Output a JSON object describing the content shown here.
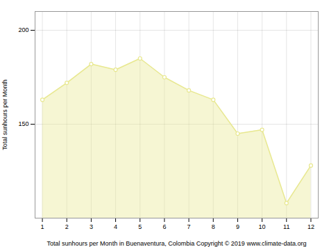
{
  "chart_data": {
    "type": "area",
    "x": [
      1,
      2,
      3,
      4,
      5,
      6,
      7,
      8,
      9,
      10,
      11,
      12
    ],
    "values": [
      163,
      172,
      182,
      179,
      185,
      175,
      168,
      163,
      145,
      147,
      108,
      128
    ],
    "xlabel": "Total sunhours per Month in Buenaventura, Colombia Copyright © 2019 www.climate-data.org",
    "ylabel": "Total sunhours per Month",
    "xlim": [
      0.7,
      12.3
    ],
    "xticks": [
      1,
      2,
      3,
      4,
      5,
      6,
      7,
      8,
      9,
      10,
      11,
      12
    ],
    "ylim": [
      100,
      210
    ],
    "yticks": [
      150,
      200
    ],
    "grid": true,
    "color": "#E8E890",
    "marker": "circle"
  }
}
